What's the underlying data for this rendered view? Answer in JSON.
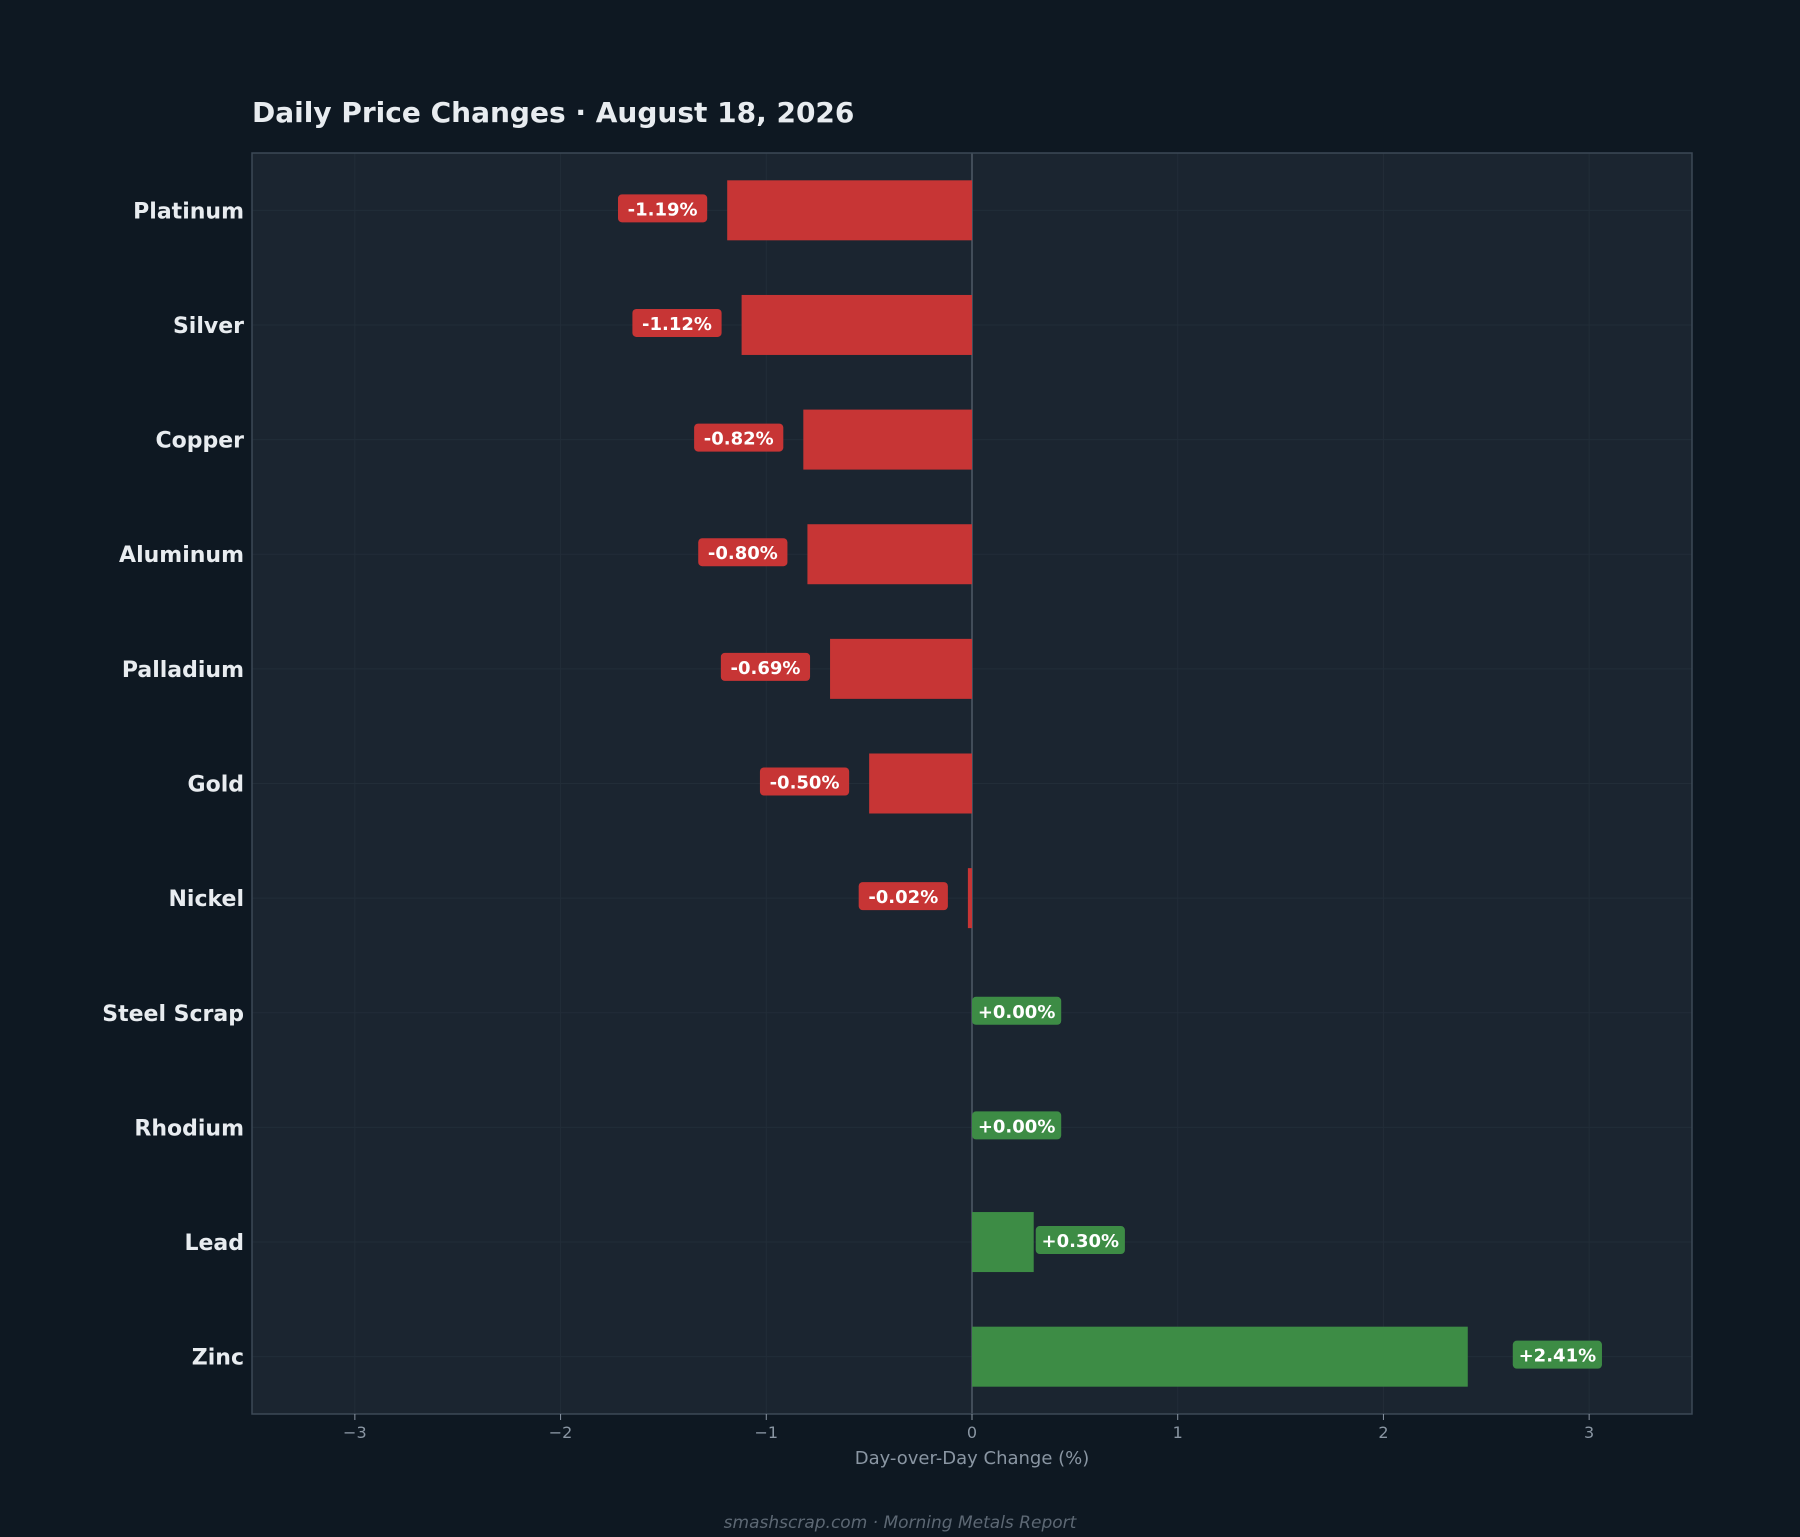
{
  "title": "Daily Price Changes  ·  August 18, 2026",
  "footer": "smashscrap.com  ·  Morning Metals Report",
  "colors": {
    "background": "#0e1822",
    "plot_background": "#1b2530",
    "plot_border": "#3c4956",
    "negative": "#c73535",
    "positive": "#3d8c45",
    "zero_line": "#4f5b67",
    "text": "#e8ecf0",
    "muted_text": "#8a96a3"
  },
  "chart_data": {
    "type": "bar",
    "orientation": "horizontal",
    "categories": [
      "Platinum",
      "Silver",
      "Copper",
      "Aluminum",
      "Palladium",
      "Gold",
      "Nickel",
      "Steel Scrap",
      "Rhodium",
      "Lead",
      "Zinc"
    ],
    "values": [
      -1.19,
      -1.12,
      -0.82,
      -0.8,
      -0.69,
      -0.5,
      -0.02,
      0.0,
      0.0,
      0.3,
      2.41
    ],
    "value_labels": [
      "-1.19%",
      "-1.12%",
      "-0.82%",
      "-0.80%",
      "-0.69%",
      "-0.50%",
      "-0.02%",
      "+0.00%",
      "+0.00%",
      "+0.30%",
      "+2.41%"
    ],
    "xlabel": "Day-over-Day Change (%)",
    "xlim": [
      -3.5,
      3.5
    ],
    "xticks": [
      -3,
      -2,
      -1,
      0,
      1,
      2,
      3
    ],
    "xtick_labels": [
      "−3",
      "−2",
      "−1",
      "0",
      "1",
      "2",
      "3"
    ],
    "grid": true,
    "legend": "none"
  }
}
